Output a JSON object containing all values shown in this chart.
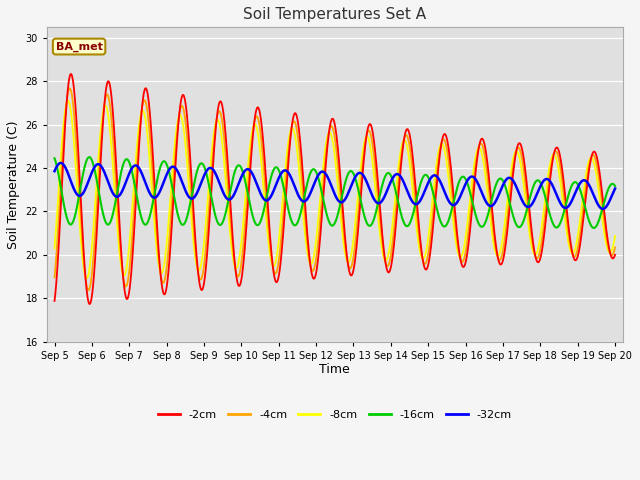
{
  "title": "Soil Temperatures Set A",
  "xlabel": "Time",
  "ylabel": "Soil Temperature (C)",
  "ylim": [
    16,
    30.5
  ],
  "xlim": [
    -0.2,
    15.2
  ],
  "yticks": [
    16,
    18,
    20,
    22,
    24,
    26,
    28,
    30
  ],
  "xtick_positions": [
    0,
    1,
    2,
    3,
    4,
    5,
    6,
    7,
    8,
    9,
    10,
    11,
    12,
    13,
    14,
    15
  ],
  "xtick_labels": [
    "Sep 5",
    "Sep 6",
    "Sep 7",
    "Sep 8",
    "Sep 9",
    "Sep 10",
    "Sep 11",
    "Sep 12",
    "Sep 13",
    "Sep 14",
    "Sep 15",
    "Sep 16",
    "Sep 17",
    "Sep 18",
    "Sep 19",
    "Sep 20"
  ],
  "colors": {
    "-2cm": "#ff0000",
    "-4cm": "#ffa500",
    "-8cm": "#ffff00",
    "-16cm": "#00cc00",
    "-32cm": "#0000ff"
  },
  "legend_label": "BA_met",
  "legend_box_facecolor": "#ffffcc",
  "legend_box_edgecolor": "#aa8800",
  "plot_bg": "#e0e0e0",
  "fig_bg": "#f5f5f5",
  "mean_temp": 23.0,
  "mean_trend_rate": -0.05,
  "amp_2cm_init": 5.5,
  "amp_4cm_init": 4.8,
  "amp_8cm_init": 4.2,
  "amp_16cm_init": 1.6,
  "amp_32cm_init": 0.75,
  "amp_2cm_decay": 0.055,
  "amp_4cm_decay": 0.05,
  "amp_8cm_decay": 0.045,
  "amp_16cm_decay": 0.03,
  "amp_32cm_decay": 0.01,
  "phase_2cm": -1.2,
  "phase_4cm": -1.0,
  "phase_8cm": -0.7,
  "phase_16cm": 2.0,
  "phase_32cm": 0.5
}
